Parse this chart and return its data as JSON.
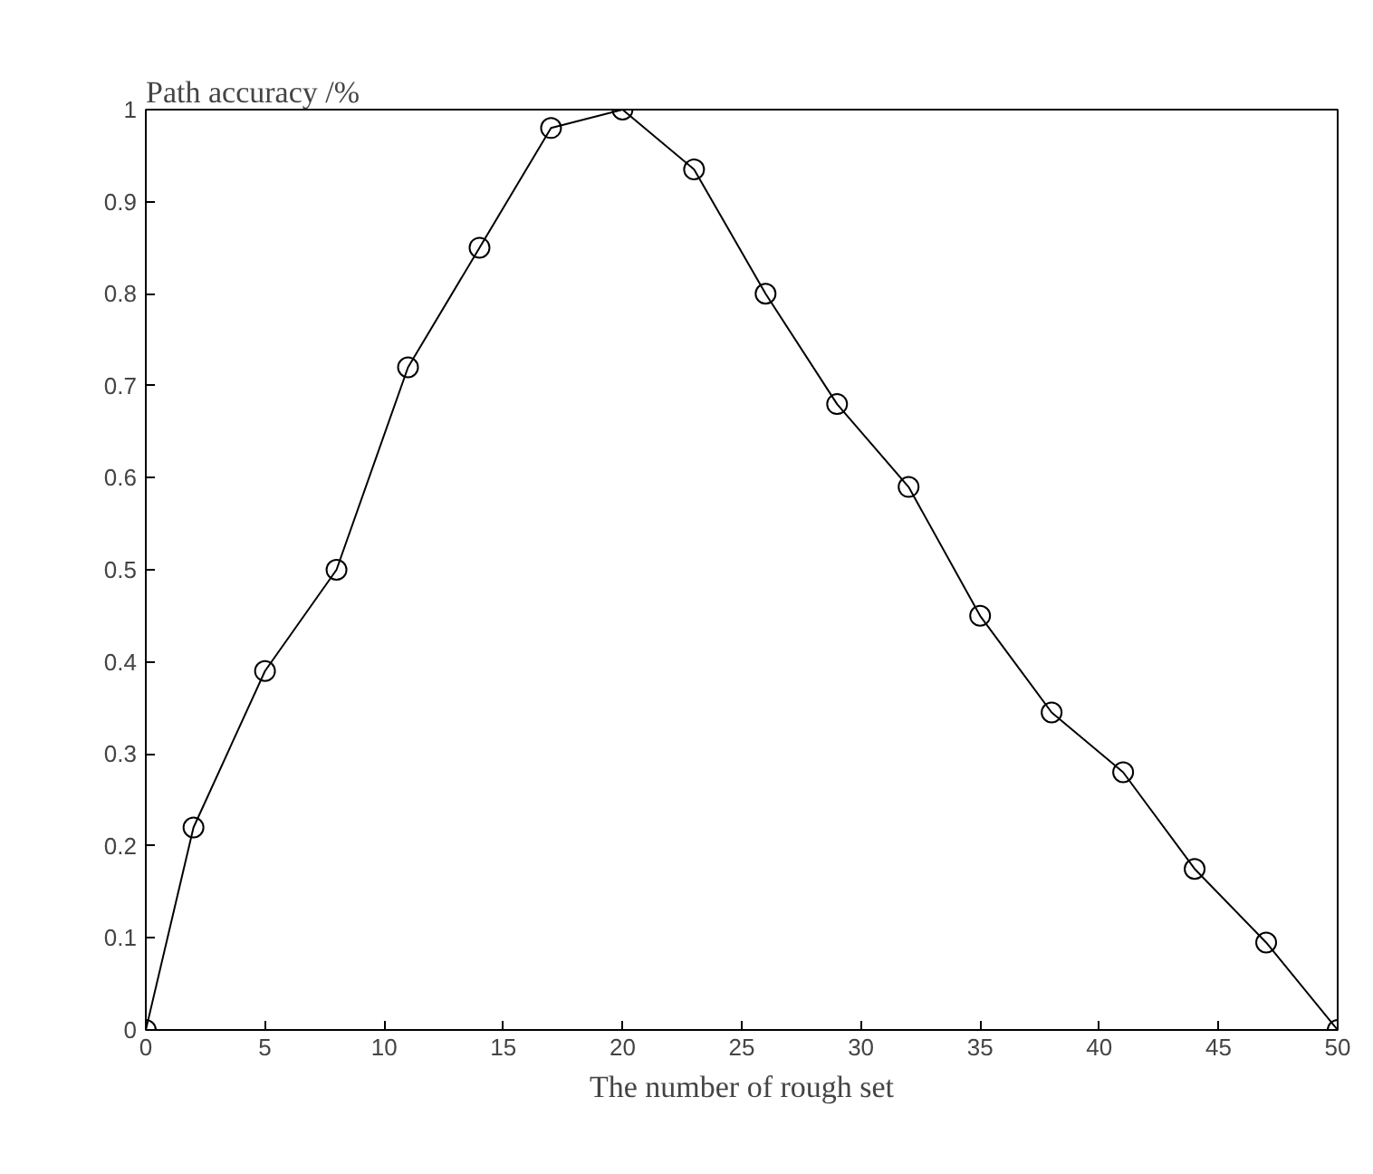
{
  "chart_data": {
    "type": "line",
    "ylabel": "Path accuracy /%",
    "xlabel": "The number of rough set",
    "x": [
      0,
      2,
      5,
      8,
      11,
      14,
      17,
      20,
      23,
      26,
      29,
      32,
      35,
      38,
      41,
      44,
      47,
      50
    ],
    "series": [
      {
        "color": "#000000",
        "values": [
          0,
          0.22,
          0.39,
          0.5,
          0.72,
          0.85,
          0.98,
          1.0,
          0.935,
          0.8,
          0.68,
          0.59,
          0.45,
          0.345,
          0.28,
          0.175,
          0.095,
          0
        ]
      }
    ],
    "xlim": [
      0,
      50
    ],
    "ylim": [
      0,
      1
    ],
    "xticks": [
      0,
      5,
      10,
      15,
      20,
      25,
      30,
      35,
      40,
      45,
      50
    ],
    "yticks": [
      0,
      0.1,
      0.2,
      0.3,
      0.4,
      0.5,
      0.6,
      0.7,
      0.8,
      0.9,
      1
    ],
    "marker": "circle",
    "line_style": "solid",
    "grid": false
  }
}
